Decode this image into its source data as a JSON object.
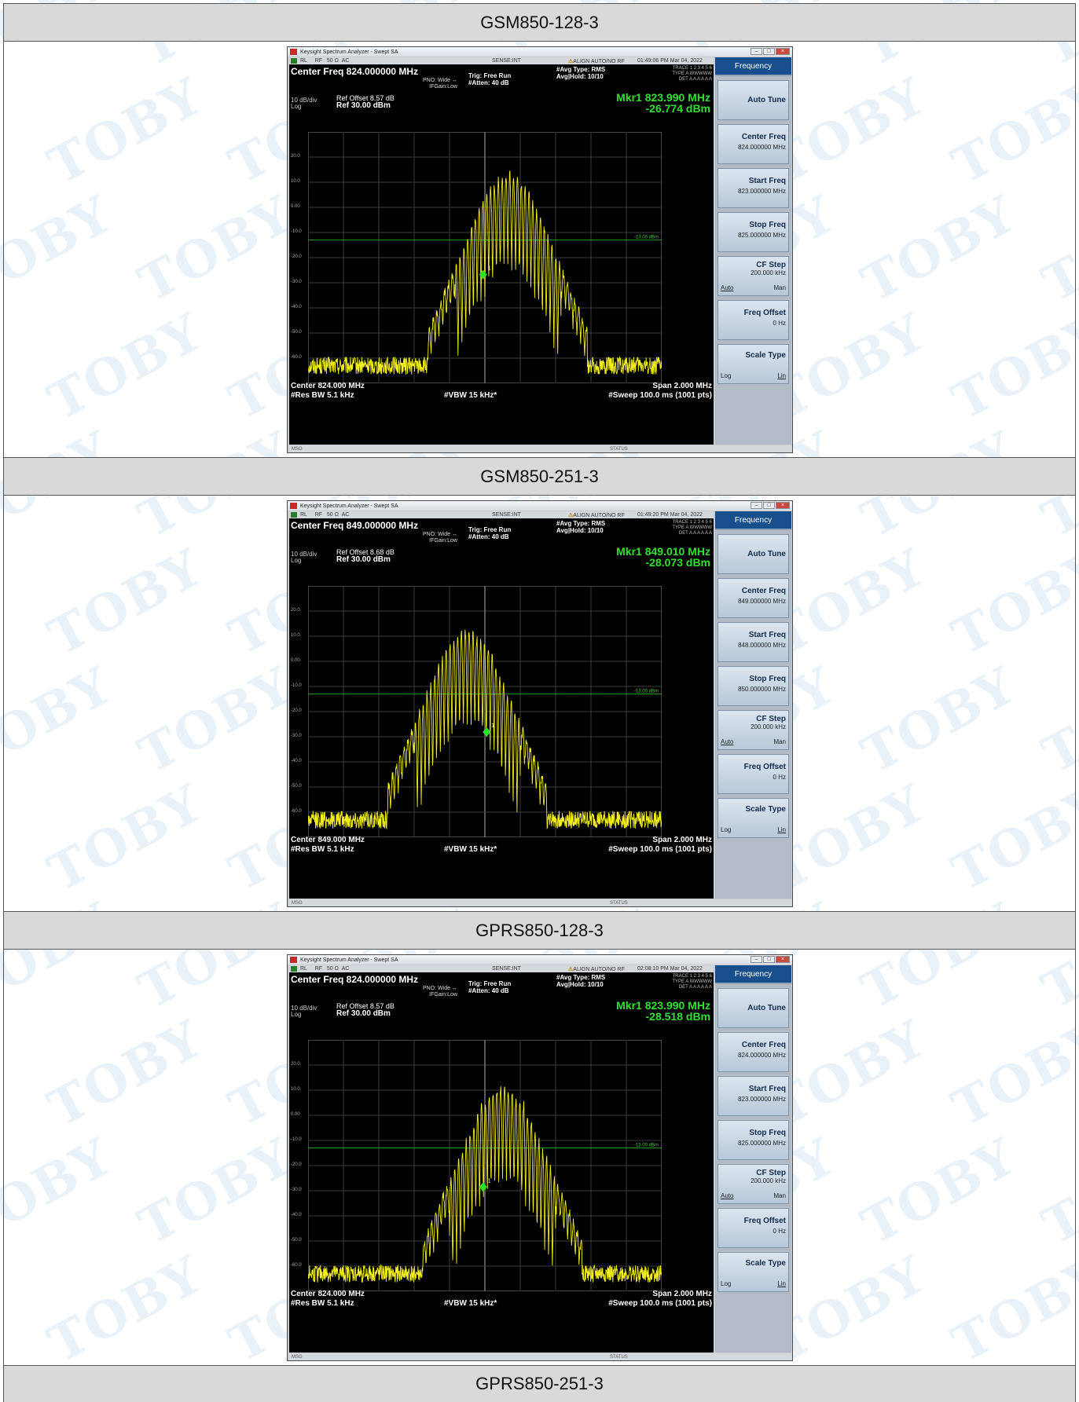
{
  "sections": [
    {
      "title": "GSM850-128-3",
      "app_title": "Keysight Spectrum Analyzer - Swept SA",
      "status": {
        "rl": "RL",
        "rf": "RF",
        "impedance": "50 Ω",
        "ac": "AC",
        "sense": "SENSE:INT",
        "align": "ALIGN AUTO/NO RF",
        "time": "01:49:06 PM Mar 04, 2022"
      },
      "center_freq_header": "Center Freq 824.000000 MHz",
      "pno": "PNO: Wide ↔",
      "ifgain": "IFGain:Low",
      "trig": "Trig: Free Run",
      "atten": "#Atten: 40 dB",
      "avg_type": "#Avg Type: RMS",
      "avg_hold": "Avg|Hold: 10/10",
      "trace_info": {
        "trace": "TRACE 1 2 3 4 5 6",
        "type": "TYPE A WWWWW",
        "det": "DET A A A A A A"
      },
      "marker_freq": "Mkr1 823.990 MHz",
      "marker_level": "-26.774 dBm",
      "ref_offset": "Ref Offset 8.57 dB",
      "ref_level": "Ref 30.00 dBm",
      "scale_div": "10 dB/div",
      "scale_type": "Log",
      "limit_label": "-13.00 dBm",
      "footer": {
        "center": "Center 824.000 MHz",
        "span": "Span 2.000 MHz",
        "rbw": "#Res BW 5.1 kHz",
        "vbw": "#VBW 15 kHz*",
        "sweep": "#Sweep  100.0 ms (1001 pts)"
      },
      "msg": "MSG",
      "status_bar": "STATUS",
      "menu": {
        "title": "Frequency",
        "auto_tune": "Auto Tune",
        "center_freq": "Center Freq",
        "center_freq_val": "824.000000 MHz",
        "start_freq": "Start Freq",
        "start_freq_val": "823.000000 MHz",
        "stop_freq": "Stop Freq",
        "stop_freq_val": "825.000000 MHz",
        "cf_step": "CF Step",
        "cf_step_val": "200.000 kHz",
        "auto": "Auto",
        "man": "Man",
        "freq_offset": "Freq Offset",
        "freq_offset_val": "0 Hz",
        "scale_type": "Scale Type",
        "log": "Log",
        "lin": "Lin"
      },
      "chart_data": {
        "type": "line",
        "peak_offset_mhz": 0.13,
        "peak_dbm": 16,
        "marker_offset_mhz": -0.01,
        "marker_dbm": -26.774,
        "ylim": [
          -70,
          30
        ],
        "xlim_mhz": [
          823.0,
          825.0
        ],
        "limit_dbm": -13
      }
    },
    {
      "title": "GSM850-251-3",
      "app_title": "Keysight Spectrum Analyzer - Swept SA",
      "status": {
        "rl": "RL",
        "rf": "RF",
        "impedance": "50 Ω",
        "ac": "AC",
        "sense": "SENSE:INT",
        "align": "ALIGN AUTO/NO RF",
        "time": "01:49:20 PM Mar 04, 2022"
      },
      "center_freq_header": "Center Freq 849.000000 MHz",
      "pno": "PNO: Wide ↔",
      "ifgain": "IFGain:Low",
      "trig": "Trig: Free Run",
      "atten": "#Atten: 40 dB",
      "avg_type": "#Avg Type: RMS",
      "avg_hold": "Avg|Hold: 10/10",
      "trace_info": {
        "trace": "TRACE 1 2 3 4 5 6",
        "type": "TYPE A WWWWW",
        "det": "DET A A A A A A"
      },
      "marker_freq": "Mkr1 849.010 MHz",
      "marker_level": "-28.073 dBm",
      "ref_offset": "Ref Offset 8.68 dB",
      "ref_level": "Ref 30.00 dBm",
      "scale_div": "10 dB/div",
      "scale_type": "Log",
      "limit_label": "-13.00 dBm",
      "footer": {
        "center": "Center 849.000 MHz",
        "span": "Span 2.000 MHz",
        "rbw": "#Res BW 5.1 kHz",
        "vbw": "#VBW 15 kHz*",
        "sweep": "#Sweep  100.0 ms (1001 pts)"
      },
      "msg": "MSG",
      "status_bar": "STATUS",
      "menu": {
        "title": "Frequency",
        "auto_tune": "Auto Tune",
        "center_freq": "Center Freq",
        "center_freq_val": "849.000000 MHz",
        "start_freq": "Start Freq",
        "start_freq_val": "848.000000 MHz",
        "stop_freq": "Stop Freq",
        "stop_freq_val": "850.000000 MHz",
        "cf_step": "CF Step",
        "cf_step_val": "200.000 kHz",
        "auto": "Auto",
        "man": "Man",
        "freq_offset": "Freq Offset",
        "freq_offset_val": "0 Hz",
        "scale_type": "Scale Type",
        "log": "Log",
        "lin": "Lin"
      },
      "chart_data": {
        "type": "line",
        "peak_offset_mhz": -0.1,
        "peak_dbm": 15,
        "marker_offset_mhz": 0.01,
        "marker_dbm": -28.073,
        "ylim": [
          -70,
          30
        ],
        "xlim_mhz": [
          848.0,
          850.0
        ],
        "limit_dbm": -13
      }
    },
    {
      "title": "GPRS850-128-3",
      "app_title": "Keysight Spectrum Analyzer - Swept SA",
      "status": {
        "rl": "RL",
        "rf": "RF",
        "impedance": "50 Ω",
        "ac": "AC",
        "sense": "SENSE:INT",
        "align": "ALIGN AUTO/NO RF",
        "time": "02:08:10 PM Mar 04, 2022"
      },
      "center_freq_header": "Center Freq 824.000000 MHz",
      "pno": "PNO: Wide ↔",
      "ifgain": "IFGain:Low",
      "trig": "Trig: Free Run",
      "atten": "#Atten: 40 dB",
      "avg_type": "#Avg Type: RMS",
      "avg_hold": "Avg|Hold: 10/10",
      "trace_info": {
        "trace": "TRACE 1 2 3 4 5 6",
        "type": "TYPE A WWWWW",
        "det": "DET A A A A A A"
      },
      "marker_freq": "Mkr1 823.990 MHz",
      "marker_level": "-28.518 dBm",
      "ref_offset": "Ref Offset 8.57 dB",
      "ref_level": "Ref 30.00 dBm",
      "scale_div": "10 dB/div",
      "scale_type": "Log",
      "limit_label": "-13.00 dBm",
      "footer": {
        "center": "Center 824.000 MHz",
        "span": "Span 2.000 MHz",
        "rbw": "#Res BW 5.1 kHz",
        "vbw": "#VBW 15 kHz*",
        "sweep": "#Sweep  100.0 ms (1001 pts)"
      },
      "msg": "MSG",
      "status_bar": "STATUS",
      "menu": {
        "title": "Frequency",
        "auto_tune": "Auto Tune",
        "center_freq": "Center Freq",
        "center_freq_val": "824.000000 MHz",
        "start_freq": "Start Freq",
        "start_freq_val": "823.000000 MHz",
        "stop_freq": "Stop Freq",
        "stop_freq_val": "825.000000 MHz",
        "cf_step": "CF Step",
        "cf_step_val": "200.000 kHz",
        "auto": "Auto",
        "man": "Man",
        "freq_offset": "Freq Offset",
        "freq_offset_val": "0 Hz",
        "scale_type": "Scale Type",
        "log": "Log",
        "lin": "Lin"
      },
      "chart_data": {
        "type": "line",
        "peak_offset_mhz": 0.1,
        "peak_dbm": 14,
        "marker_offset_mhz": -0.01,
        "marker_dbm": -28.518,
        "ylim": [
          -70,
          30
        ],
        "xlim_mhz": [
          823.0,
          825.0
        ],
        "limit_dbm": -13
      }
    }
  ],
  "last_title": "GPRS850-251-3",
  "y_ticks": [
    "20.0",
    "10.0",
    "0.00",
    "-10.0",
    "-20.0",
    "-30.0",
    "-40.0",
    "-50.0",
    "-60.0"
  ],
  "watermark": "TOBY"
}
